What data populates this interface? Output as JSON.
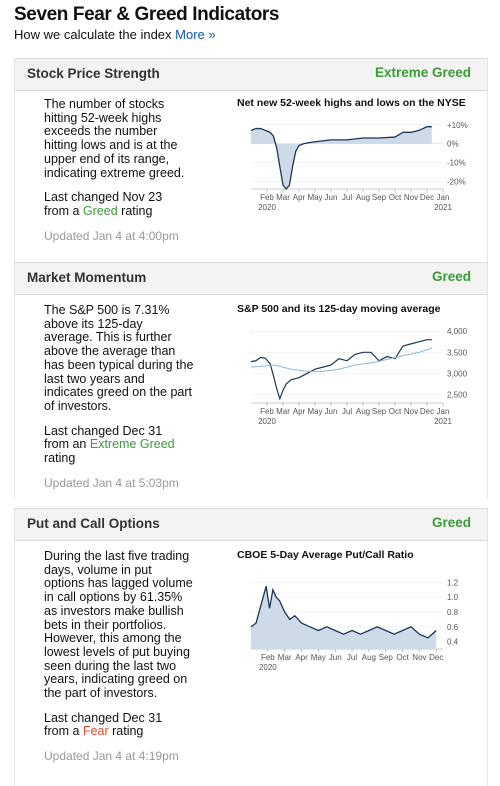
{
  "header": {
    "title": "Seven Fear & Greed Indicators",
    "subtitle": "How we calculate the index",
    "more_link": "More »"
  },
  "indicators": [
    {
      "title": "Stock Price Strength",
      "rating": "Extreme Greed",
      "description": "The number of stocks hitting 52-week highs exceeds the number hitting lows and is at the upper end of its range, indicating extreme greed.",
      "last_changed_prefix": "Last changed Nov 23",
      "last_changed_from": "from a",
      "previous_rating": "Greed",
      "previous_suffix": "rating",
      "updated": "Updated Jan 4 at 4:00pm",
      "chart_title": "Net new 52-week highs and lows on the NYSE"
    },
    {
      "title": "Market Momentum",
      "rating": "Greed",
      "description": "The S&P 500 is 7.31% above its 125-day average. This is further above the average than has been typical during the last two years and indicates greed on the part of investors.",
      "last_changed_prefix": "Last changed Dec 31",
      "last_changed_from": "from an",
      "previous_rating": "Extreme Greed",
      "previous_suffix": "rating",
      "updated": "Updated Jan 4 at 5:03pm",
      "chart_title": "S&P 500 and its 125-day moving average"
    },
    {
      "title": "Put and Call Options",
      "rating": "Greed",
      "description": "During the last five trading days, volume in put options has lagged volume in call options by 61.35% as investors make bullish bets in their portfolios. However, this among the lowest levels of put buying seen during the last two years, indicating greed on the part of investors.",
      "last_changed_prefix": "Last changed Dec 31",
      "last_changed_from": "from a",
      "previous_rating": "Fear",
      "previous_suffix": "rating",
      "updated": "Updated Jan 4 at 4:19pm",
      "chart_title": "CBOE 5-Day Average Put/Call Ratio"
    }
  ],
  "colors": {
    "greed": "#3b9b37",
    "fear": "#e84b2a",
    "link": "#0a55b4"
  },
  "chart_data": [
    {
      "type": "area",
      "title": "Net new 52-week highs and lows on the NYSE",
      "x_ticks": [
        "Feb",
        "Mar",
        "Apr",
        "May",
        "Jun",
        "Jul",
        "Aug",
        "Sep",
        "Oct",
        "Nov",
        "Dec",
        "Jan"
      ],
      "year_labels": [
        "2020",
        "2021"
      ],
      "y_ticks": [
        "+10%",
        "0%",
        "-10%",
        "-20%"
      ],
      "y_tick_values": [
        10,
        0,
        -10,
        -20
      ],
      "ylim": [
        -24,
        12
      ],
      "x": [
        0,
        0.3,
        0.6,
        0.9,
        1.2,
        1.4,
        1.6,
        1.8,
        2.0,
        2.2,
        2.4,
        2.6,
        2.8,
        3.0,
        3.3,
        3.6,
        4.0,
        5.0,
        6.0,
        7.0,
        8.0,
        9.0,
        9.5,
        10.0,
        10.5,
        11.0,
        11.3
      ],
      "values": [
        7,
        8,
        8,
        7,
        6,
        4,
        -2,
        -12,
        -22,
        -24,
        -22,
        -12,
        -4,
        -1,
        0,
        0.5,
        1,
        2,
        2,
        3,
        3,
        3.5,
        6,
        6,
        7,
        9,
        9
      ]
    },
    {
      "type": "line",
      "title": "S&P 500 and its 125-day moving average",
      "x_ticks": [
        "Feb",
        "Mar",
        "Apr",
        "May",
        "Jun",
        "Jul",
        "Aug",
        "Sep",
        "Oct",
        "Nov",
        "Dec",
        "Jan"
      ],
      "year_labels": [
        "2020",
        "2021"
      ],
      "y_ticks": [
        "4,000",
        "3,500",
        "3,000",
        "2,500"
      ],
      "y_tick_values": [
        4000,
        3500,
        3000,
        2500
      ],
      "ylim": [
        2300,
        4100
      ],
      "series": [
        {
          "values_x": [
            0,
            0.3,
            0.6,
            0.9,
            1.2,
            1.4,
            1.6,
            1.8,
            2.0,
            2.2,
            2.5,
            3.0,
            3.5,
            4.0,
            4.5,
            5.0,
            5.5,
            6.0,
            6.5,
            7.0,
            7.5,
            8.0,
            8.5,
            9.0,
            9.5,
            10.0,
            10.5,
            11.0,
            11.3
          ],
          "values": [
            3280,
            3300,
            3380,
            3360,
            3230,
            2950,
            2650,
            2400,
            2600,
            2750,
            2850,
            2900,
            3000,
            3100,
            3150,
            3200,
            3350,
            3300,
            3450,
            3500,
            3500,
            3300,
            3400,
            3350,
            3650,
            3700,
            3750,
            3800,
            3800
          ]
        },
        {
          "values_x": [
            0,
            1.5,
            2.5,
            3.5,
            4.5,
            5.5,
            6.5,
            7.5,
            8.5,
            9.5,
            10.5,
            11.3
          ],
          "values": [
            3150,
            3200,
            3100,
            3050,
            3050,
            3100,
            3200,
            3250,
            3330,
            3420,
            3500,
            3600
          ]
        }
      ]
    },
    {
      "type": "area",
      "title": "CBOE 5-Day Average Put/Call Ratio",
      "x_ticks": [
        "Feb",
        "Mar",
        "Apr",
        "May",
        "Jun",
        "Jul",
        "Aug",
        "Sep",
        "Oct",
        "Nov",
        "Dec"
      ],
      "year_labels": [
        "2020"
      ],
      "y_ticks": [
        "1.2",
        "1.0",
        "0.8",
        "0.6",
        "0.4"
      ],
      "y_tick_values": [
        1.2,
        1.0,
        0.8,
        0.6,
        0.4
      ],
      "ylim": [
        0.3,
        1.3
      ],
      "x": [
        0,
        0.3,
        0.6,
        0.9,
        1.1,
        1.3,
        1.5,
        1.7,
        2.0,
        2.3,
        2.6,
        3.0,
        3.5,
        4.0,
        4.5,
        5.0,
        5.5,
        6.0,
        6.5,
        7.0,
        7.5,
        8.0,
        8.5,
        9.0,
        9.5,
        10.0,
        10.5,
        11.0
      ],
      "values": [
        0.6,
        0.65,
        0.9,
        1.15,
        0.85,
        1.1,
        1.0,
        0.95,
        0.8,
        0.7,
        0.75,
        0.65,
        0.6,
        0.55,
        0.6,
        0.55,
        0.5,
        0.55,
        0.5,
        0.55,
        0.6,
        0.55,
        0.5,
        0.55,
        0.6,
        0.5,
        0.45,
        0.55
      ]
    }
  ]
}
